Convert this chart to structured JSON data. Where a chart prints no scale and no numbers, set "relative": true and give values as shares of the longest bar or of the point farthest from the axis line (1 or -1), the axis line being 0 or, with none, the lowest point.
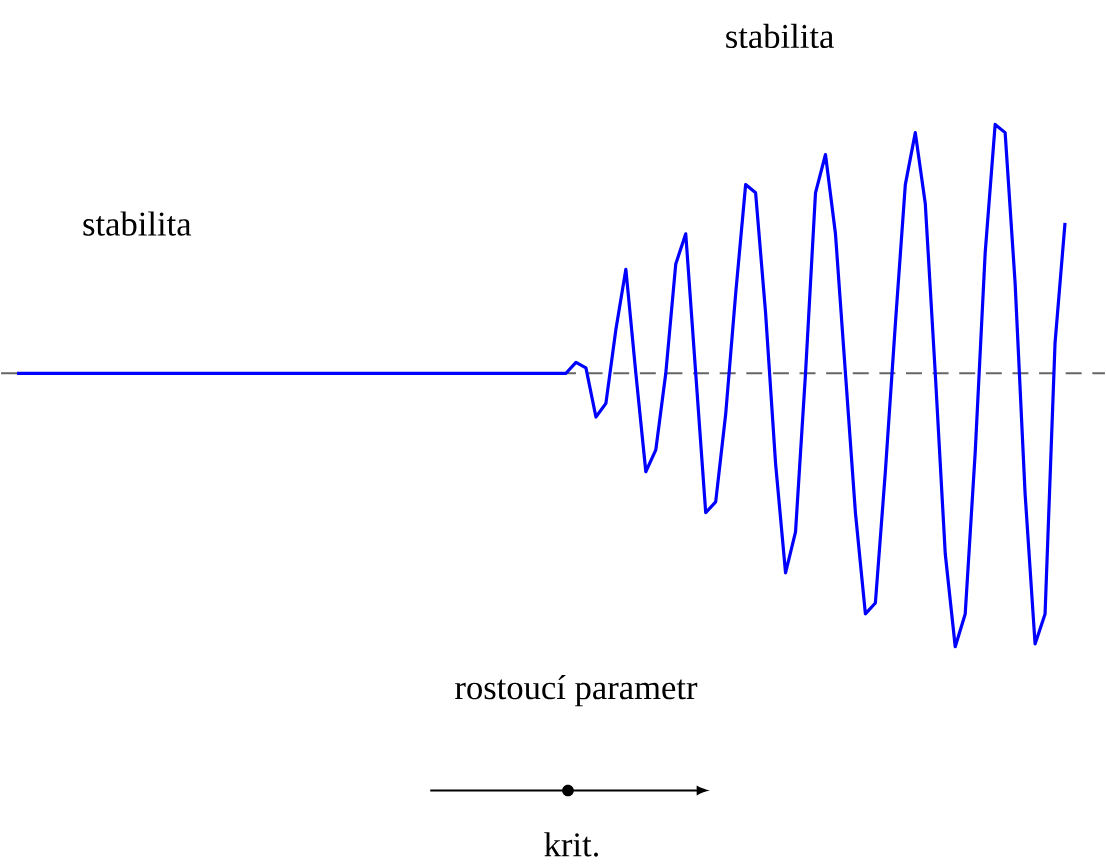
{
  "chart_data": {
    "type": "line",
    "relative": true,
    "categories": [
      null,
      null,
      null,
      null,
      null,
      null,
      null,
      null,
      null,
      null,
      null,
      null,
      null,
      null,
      null,
      null,
      null,
      null,
      null,
      null,
      null,
      null,
      null,
      null,
      null,
      null,
      null,
      null,
      null,
      null,
      null,
      null,
      null,
      null,
      null,
      null,
      null,
      null,
      null,
      null,
      null,
      null,
      null,
      null,
      null,
      null,
      null,
      null,
      null,
      null,
      null,
      null,
      null,
      null,
      null,
      null,
      null,
      null,
      null,
      null,
      null,
      null,
      null,
      null,
      null,
      null,
      null,
      null,
      null,
      null,
      null,
      null,
      null,
      null,
      null,
      null,
      null,
      null,
      null,
      null,
      null,
      null,
      null,
      null,
      null,
      null,
      null,
      null,
      null,
      null,
      null,
      null,
      null,
      null,
      null,
      null,
      null,
      null,
      null,
      null,
      null,
      null,
      null,
      null,
      null,
      null
    ],
    "series": [
      {
        "color": "#0000ff",
        "values": [
          0,
          0,
          0,
          0,
          0,
          0,
          0,
          0,
          0,
          0,
          0,
          0,
          0,
          0,
          0,
          0,
          0,
          0,
          0,
          0,
          0,
          0,
          0,
          0,
          0,
          0,
          0,
          0,
          0,
          0,
          0,
          0,
          0,
          0,
          0,
          0,
          0,
          0,
          0,
          0,
          0,
          0,
          0,
          0,
          0,
          0,
          0,
          0,
          0,
          0,
          0,
          0,
          0,
          0,
          0,
          0,
          0.04,
          0.02,
          -0.16,
          -0.11,
          0.16,
          0.38,
          0,
          -0.36,
          -0.28,
          0,
          0.4,
          0.51,
          0,
          -0.51,
          -0.47,
          -0.15,
          0.29,
          0.69,
          0.66,
          0.22,
          -0.33,
          -0.73,
          -0.58,
          0,
          0.66,
          0.8,
          0.51,
          0,
          -0.51,
          -0.88,
          -0.84,
          -0.36,
          0.18,
          0.69,
          0.88,
          0.62,
          0,
          -0.66,
          -1,
          -0.88,
          -0.29,
          0.44,
          0.91,
          0.88,
          0.33,
          -0.44,
          -0.99,
          -0.88,
          0.11,
          0.55
        ]
      }
    ],
    "ref_lines": [
      {
        "axis": "y",
        "value": 0,
        "color": "#666666",
        "line_style": "dashed"
      }
    ],
    "annotations": [
      "stabilita",
      "stabilita",
      "rostoucí parametr",
      "krit."
    ]
  }
}
